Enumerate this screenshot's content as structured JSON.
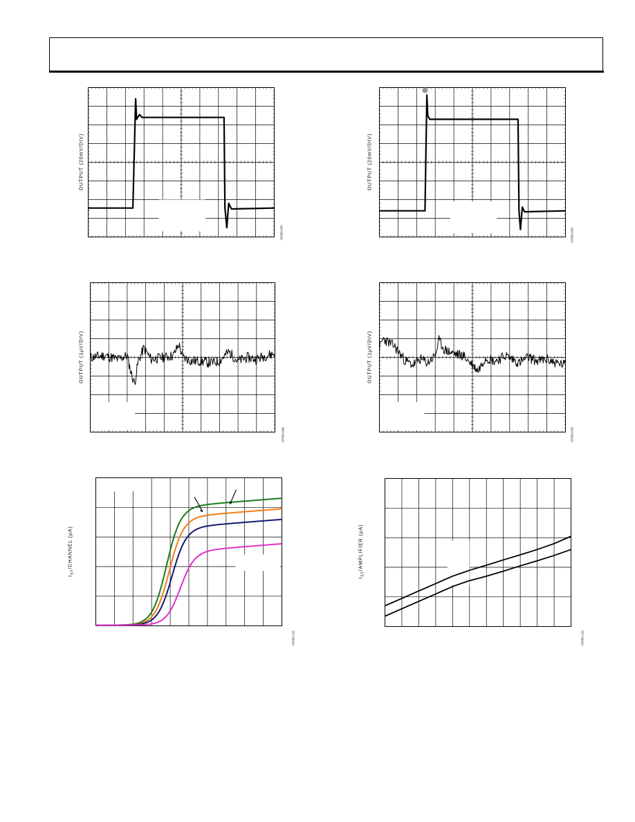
{
  "panels": [
    {
      "name": "panel-step-response-1",
      "ylabel": "OUTPUT (20mV/DIV)",
      "fig_id": "07050-025",
      "chart_data": {
        "type": "line",
        "title": "",
        "xlabel": "",
        "ylabel": "OUTPUT (20mV/DIV)",
        "x_divisions": 10,
        "y_divisions": 8,
        "grid": true,
        "series": [
          {
            "name": "",
            "color": "#000000",
            "kind": "pulse",
            "x": [
              0,
              2.4,
              2.55,
              2.6,
              2.75,
              2.9,
              7.3,
              7.35,
              7.45,
              7.55,
              7.7,
              10
            ],
            "y": [
              1.55,
              1.55,
              7.4,
              6.3,
              6.55,
              6.4,
              6.4,
              1.55,
              0.5,
              1.8,
              1.5,
              1.55
            ]
          }
        ]
      }
    },
    {
      "name": "panel-step-response-2",
      "ylabel": "OUTPUT (20mV/DIV)",
      "fig_id": "07050-028",
      "chart_data": {
        "type": "line",
        "title": "",
        "xlabel": "",
        "ylabel": "OUTPUT (20mV/DIV)",
        "x_divisions": 10,
        "y_divisions": 8,
        "grid": true,
        "series": [
          {
            "name": "",
            "color": "#000000",
            "kind": "pulse",
            "x": [
              0,
              2.45,
              2.55,
              2.6,
              2.7,
              2.85,
              7.45,
              7.5,
              7.58,
              7.68,
              7.8,
              10
            ],
            "y": [
              1.4,
              1.4,
              7.6,
              6.5,
              6.3,
              6.3,
              6.3,
              1.4,
              0.4,
              1.6,
              1.35,
              1.4
            ]
          }
        ]
      }
    },
    {
      "name": "panel-noise-1",
      "ylabel": "OUTPUT (1μV/DIV)",
      "fig_id": "07050-040",
      "chart_data": {
        "type": "line",
        "title": "",
        "xlabel": "",
        "ylabel": "OUTPUT (1μV/DIV)",
        "x_divisions": 10,
        "y_divisions": 8,
        "grid": true,
        "series": [
          {
            "name": "",
            "color": "#000000",
            "kind": "noise",
            "seed": 11,
            "x": [
              0,
              0.8,
              1.5,
              2.0,
              2.2,
              2.4,
              2.6,
              2.9,
              3.3,
              4.0,
              4.5,
              4.8,
              5.0,
              5.5,
              6.0,
              6.5,
              7.0,
              7.5,
              8.0,
              8.5,
              9.0,
              9.5,
              10
            ],
            "y": [
              4.0,
              4.1,
              3.9,
              4.1,
              3.2,
              2.6,
              3.8,
              4.5,
              3.9,
              4.0,
              4.1,
              4.7,
              4.0,
              3.8,
              3.8,
              3.7,
              3.8,
              4.3,
              3.8,
              4.0,
              3.9,
              4.1,
              4.2
            ]
          }
        ]
      }
    },
    {
      "name": "panel-noise-2",
      "ylabel": "OUTPUT (1μV/DIV)",
      "fig_id": "07050-043",
      "chart_data": {
        "type": "line",
        "title": "",
        "xlabel": "",
        "ylabel": "OUTPUT (1μV/DIV)",
        "x_divisions": 10,
        "y_divisions": 8,
        "grid": true,
        "series": [
          {
            "name": "",
            "color": "#000000",
            "kind": "noise",
            "seed": 23,
            "x": [
              0,
              0.2,
              0.8,
              1.4,
              1.8,
              2.2,
              2.6,
              3.0,
              3.2,
              3.5,
              4.0,
              4.5,
              5.0,
              5.3,
              5.7,
              6.2,
              6.8,
              7.5,
              8.0,
              8.5,
              9.0,
              9.5,
              10
            ],
            "y": [
              4.5,
              5.0,
              4.6,
              3.8,
              3.6,
              3.9,
              3.7,
              4.1,
              4.9,
              4.4,
              4.2,
              4.1,
              3.6,
              3.3,
              4.0,
              3.8,
              4.1,
              3.7,
              4.0,
              3.8,
              3.9,
              3.7,
              3.6
            ]
          }
        ]
      }
    },
    {
      "name": "panel-supply-current-vs-voltage",
      "ylabel_main": "I",
      "ylabel_sub": "SY",
      "ylabel_rest": "/CHANNEL (μA)",
      "fig_id": "07050-125",
      "chart_data": {
        "type": "line",
        "title": "",
        "xlabel": "",
        "ylabel": "ISY/CHANNEL (μA)",
        "x_divisions": 10,
        "y_divisions": 5,
        "grid": true,
        "annotations": [
          "arrow-1",
          "arrow-2"
        ],
        "series": [
          {
            "name": "",
            "color": "#1a7a1a",
            "kind": "sigmoid",
            "x0": 3.8,
            "k": 2.6,
            "low": 0.02,
            "high": 4.05,
            "slope": 0.05
          },
          {
            "name": "",
            "color": "#f07c14",
            "kind": "sigmoid",
            "x0": 3.95,
            "k": 2.6,
            "low": 0.02,
            "high": 3.7,
            "slope": 0.05
          },
          {
            "name": "",
            "color": "#101870",
            "kind": "sigmoid",
            "x0": 4.1,
            "k": 2.6,
            "low": 0.02,
            "high": 3.35,
            "slope": 0.05
          },
          {
            "name": "",
            "color": "#e030c8",
            "kind": "sigmoid",
            "x0": 4.55,
            "k": 2.6,
            "low": 0.02,
            "high": 2.55,
            "slope": 0.05
          }
        ]
      }
    },
    {
      "name": "panel-supply-current-vs-temperature",
      "ylabel_main": "I",
      "ylabel_sub": "SY",
      "ylabel_rest": "/AMPLIFIER (μA)",
      "fig_id": "07050-126",
      "chart_data": {
        "type": "line",
        "title": "",
        "xlabel": "",
        "ylabel": "ISY/AMPLIFIER (μA)",
        "x_divisions": 11,
        "y_divisions": 5,
        "grid": true,
        "series": [
          {
            "name": "",
            "color": "#000000",
            "kind": "polyline",
            "x": [
              0,
              1,
              2,
              3,
              4,
              4.5,
              5,
              6,
              7,
              8,
              9,
              10,
              11
            ],
            "y": [
              0.7,
              0.95,
              1.2,
              1.45,
              1.7,
              1.8,
              1.9,
              2.07,
              2.25,
              2.42,
              2.6,
              2.8,
              3.05
            ]
          },
          {
            "name": "",
            "color": "#000000",
            "kind": "polyline",
            "x": [
              0,
              1,
              2,
              3,
              4,
              4.5,
              5,
              6,
              7,
              8,
              9,
              10,
              11
            ],
            "y": [
              0.35,
              0.6,
              0.85,
              1.1,
              1.35,
              1.45,
              1.55,
              1.7,
              1.87,
              2.05,
              2.22,
              2.4,
              2.6
            ]
          }
        ]
      }
    }
  ]
}
